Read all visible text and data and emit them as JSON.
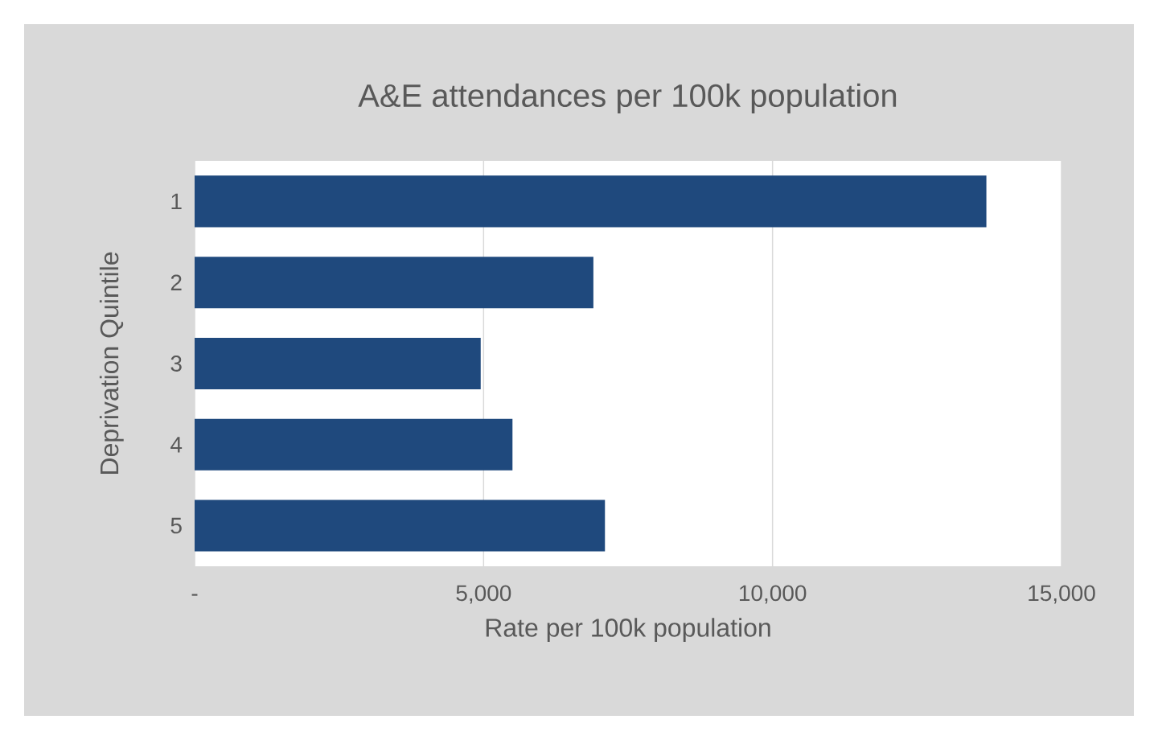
{
  "chart_data": {
    "type": "bar",
    "orientation": "horizontal",
    "title": "A&E attendances per 100k population",
    "xlabel": "Rate per 100k population",
    "ylabel": "Deprivation Quintile",
    "categories": [
      "1",
      "2",
      "3",
      "4",
      "5"
    ],
    "values": [
      13700,
      6900,
      4950,
      5500,
      7100
    ],
    "color": "#1f497d",
    "xlim": [
      0,
      15000
    ],
    "xticks": [
      {
        "value": 0,
        "label": "-"
      },
      {
        "value": 5000,
        "label": "5,000"
      },
      {
        "value": 10000,
        "label": "10,000"
      },
      {
        "value": 15000,
        "label": "15,000"
      }
    ],
    "grid": "x"
  }
}
